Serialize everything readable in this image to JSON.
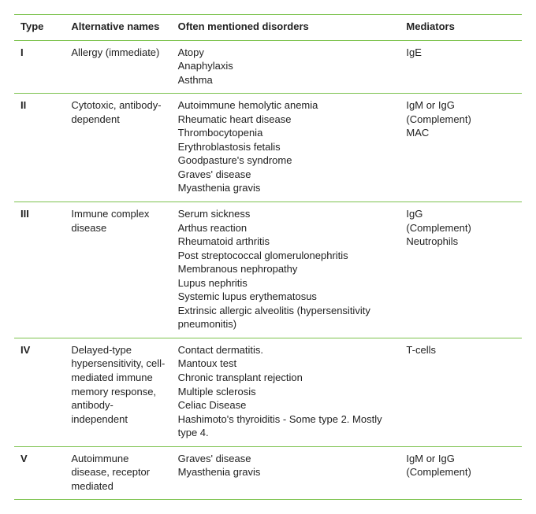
{
  "table": {
    "border_color": "#7cc24d",
    "text_color": "#222222",
    "fontsize": 13,
    "header_fontweight": "bold",
    "columns": [
      {
        "key": "type",
        "label": "Type",
        "width_pct": 10
      },
      {
        "key": "alt",
        "label": "Alternative names",
        "width_pct": 21
      },
      {
        "key": "dis",
        "label": "Often mentioned disorders",
        "width_pct": 45
      },
      {
        "key": "med",
        "label": "Mediators",
        "width_pct": 24
      }
    ],
    "rows": [
      {
        "type": "I",
        "alt": [
          "Allergy (immediate)"
        ],
        "dis": [
          "Atopy",
          "Anaphylaxis",
          "Asthma"
        ],
        "med": [
          "IgE"
        ]
      },
      {
        "type": "II",
        "alt": [
          "Cytotoxic, antibody-dependent"
        ],
        "dis": [
          "Autoimmune hemolytic anemia",
          "Rheumatic heart disease",
          "Thrombocytopenia",
          "Erythroblastosis fetalis",
          "Goodpasture's syndrome",
          "Graves' disease",
          "Myasthenia gravis"
        ],
        "med": [
          "IgM or IgG",
          "(Complement)",
          "MAC"
        ]
      },
      {
        "type": "III",
        "alt": [
          "Immune complex disease"
        ],
        "dis": [
          "Serum sickness",
          "Arthus reaction",
          "Rheumatoid arthritis",
          "Post streptococcal glomerulonephritis",
          "Membranous nephropathy",
          "Lupus nephritis",
          "Systemic lupus erythematosus",
          "Extrinsic allergic alveolitis (hypersensitivity pneumonitis)"
        ],
        "med": [
          "IgG",
          "(Complement)",
          "Neutrophils"
        ]
      },
      {
        "type": "IV",
        "alt": [
          "Delayed-type hypersensitivity, cell-mediated immune memory response, antibody-independent"
        ],
        "dis": [
          "Contact dermatitis.",
          "Mantoux test",
          "Chronic transplant rejection",
          "Multiple sclerosis",
          "Celiac Disease",
          "Hashimoto's thyroiditis - Some type 2. Mostly type 4."
        ],
        "med": [
          "T-cells"
        ]
      },
      {
        "type": "V",
        "alt": [
          "Autoimmune disease, receptor mediated"
        ],
        "dis": [
          "Graves' disease",
          "Myasthenia gravis"
        ],
        "med": [
          "IgM or IgG",
          "(Complement)"
        ]
      }
    ]
  }
}
